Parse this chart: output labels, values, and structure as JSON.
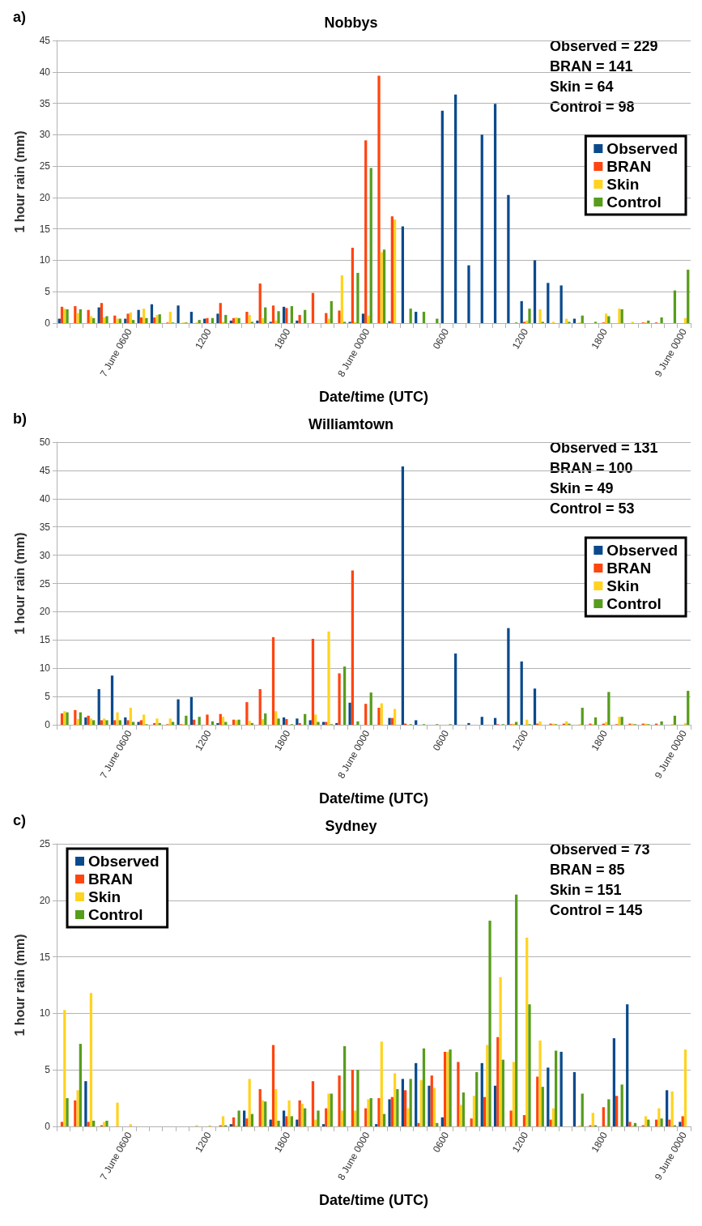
{
  "chart_data": [
    {
      "type": "bar",
      "title": "Nobbys",
      "xlabel": "Date/time (UTC)",
      "ylabel": "1 hour rain (mm)",
      "annotations": [
        "a)",
        "Observed = 229",
        "BRAN = 141",
        "Skin = 64",
        "Control = 98"
      ],
      "grid": "y",
      "legend": "right",
      "ylim": [
        0,
        45
      ],
      "yticks": [
        0,
        5,
        10,
        15,
        20,
        25,
        30,
        35,
        40,
        45
      ],
      "categories": [
        null,
        null,
        null,
        null,
        null,
        "7 June 0600",
        null,
        null,
        null,
        null,
        null,
        "1200",
        null,
        null,
        null,
        null,
        null,
        "1800",
        null,
        null,
        null,
        null,
        null,
        "8 June 0000",
        null,
        null,
        null,
        null,
        null,
        "0600",
        null,
        null,
        null,
        null,
        null,
        "1200",
        null,
        null,
        null,
        null,
        null,
        "1800",
        null,
        null,
        null,
        null,
        null,
        "9 June 0000"
      ],
      "series": [
        {
          "name": "Observed",
          "color": "#0a4a8c",
          "values": [
            0.7,
            0,
            0,
            2.5,
            0,
            0.7,
            2.1,
            3.0,
            0,
            2.8,
            1.8,
            0.7,
            1.5,
            0.4,
            0,
            0.4,
            0.2,
            2.6,
            0.4,
            0,
            0,
            0,
            0.2,
            1.5,
            0,
            0.3,
            15.4,
            1.8,
            0,
            33.8,
            36.4,
            9.2,
            30.0,
            34.9,
            20.4,
            3.5,
            10.0,
            6.4,
            6.0,
            0.7,
            0,
            0,
            0,
            0,
            0,
            0,
            0,
            0
          ]
        },
        {
          "name": "BRAN",
          "color": "#ff4510",
          "values": [
            2.6,
            2.7,
            2.1,
            3.2,
            1.2,
            1.5,
            0.9,
            0.9,
            0.1,
            0,
            0,
            0.8,
            3.2,
            0.8,
            1.8,
            6.3,
            2.8,
            2.4,
            1.3,
            4.8,
            1.6,
            2.0,
            12.0,
            29.1,
            39.4,
            17.0,
            0,
            0,
            0,
            0,
            0,
            0,
            0,
            0,
            0,
            0.2,
            0,
            0,
            0,
            0,
            0,
            0.1,
            0,
            0,
            0.1,
            0.1,
            0,
            0
          ]
        },
        {
          "name": "Skin",
          "color": "#ffd320",
          "values": [
            2.3,
            1.6,
            1.1,
            0.9,
            0.7,
            1.7,
            2.3,
            1.3,
            1.8,
            0.1,
            0.1,
            0,
            0.2,
            0.9,
            1.3,
            0.8,
            0.4,
            0,
            0,
            0,
            0.7,
            7.6,
            0.2,
            1.2,
            11.3,
            16.5,
            0,
            0,
            0,
            0,
            0,
            0,
            0,
            0,
            0,
            0.4,
            2.2,
            0.2,
            0.7,
            0.1,
            0,
            1.5,
            2.3,
            0.2,
            0.1,
            0,
            0,
            0.8
          ]
        },
        {
          "name": "Control",
          "color": "#579d1c",
          "values": [
            2.2,
            2.2,
            0.8,
            1.1,
            0.7,
            0.5,
            0.8,
            1.4,
            0.1,
            0.1,
            0.5,
            0.8,
            1.3,
            0.8,
            0.2,
            2.5,
            1.9,
            2.7,
            2.1,
            0,
            3.5,
            0.2,
            8.0,
            24.7,
            11.7,
            0,
            2.3,
            1.8,
            0.7,
            0,
            0,
            0,
            0,
            0,
            0.1,
            2.3,
            0.2,
            0,
            0.2,
            1.2,
            0.2,
            1.1,
            2.2,
            0,
            0.4,
            0.9,
            5.2,
            8.5
          ]
        }
      ]
    },
    {
      "type": "bar",
      "title": "Williamtown",
      "xlabel": "Date/time (UTC)",
      "ylabel": "1 hour rain (mm)",
      "annotations": [
        "b)",
        "Observed = 131",
        "BRAN = 100",
        "Skin = 49",
        "Control = 53"
      ],
      "grid": "y",
      "legend": "right",
      "ylim": [
        0,
        50
      ],
      "yticks": [
        0,
        5,
        10,
        15,
        20,
        25,
        30,
        35,
        40,
        45,
        50
      ],
      "categories": [
        null,
        null,
        null,
        null,
        null,
        "7 June 0600",
        null,
        null,
        null,
        null,
        null,
        "1200",
        null,
        null,
        null,
        null,
        null,
        "1800",
        null,
        null,
        null,
        null,
        null,
        "8 June 0000",
        null,
        null,
        null,
        null,
        null,
        "0600",
        null,
        null,
        null,
        null,
        null,
        "1200",
        null,
        null,
        null,
        null,
        null,
        "1800",
        null,
        null,
        null,
        null,
        null,
        "9 June 0000"
      ],
      "series": [
        {
          "name": "Observed",
          "color": "#0a4a8c",
          "values": [
            0,
            0,
            1.3,
            6.3,
            8.7,
            1.3,
            0.5,
            0,
            0,
            4.5,
            4.9,
            0,
            0.3,
            0,
            0,
            0,
            0,
            1.3,
            1.1,
            0.8,
            0.5,
            0.3,
            3.9,
            0,
            0,
            1.2,
            45.7,
            0.8,
            0,
            0,
            12.6,
            0.3,
            1.4,
            1.2,
            17.1,
            11.2,
            6.4,
            0,
            0,
            0,
            0,
            0,
            0,
            0,
            0,
            0,
            0,
            0
          ]
        },
        {
          "name": "BRAN",
          "color": "#ff4510",
          "values": [
            2.0,
            2.6,
            1.6,
            0.8,
            0.8,
            0.8,
            0.8,
            0.3,
            0.1,
            0.1,
            0.9,
            1.8,
            1.9,
            0.9,
            4.0,
            6.3,
            15.5,
            1.0,
            0.3,
            15.2,
            0.5,
            9.1,
            27.3,
            3.7,
            3.0,
            1.2,
            0.2,
            0,
            0,
            0,
            0,
            0,
            0,
            0.1,
            0.1,
            0,
            0.2,
            0.2,
            0.2,
            0,
            0.2,
            0.2,
            0.1,
            0.2,
            0.2,
            0.2,
            0,
            0
          ]
        },
        {
          "name": "Skin",
          "color": "#ffd320",
          "values": [
            2.4,
            1.0,
            1.1,
            1.1,
            2.2,
            3.0,
            1.8,
            1.1,
            1.1,
            0.1,
            0,
            0,
            1.4,
            0.8,
            0.7,
            1.0,
            2.4,
            0,
            0,
            1.8,
            16.5,
            0,
            0,
            0,
            3.8,
            2.8,
            0,
            0,
            0,
            0,
            0,
            0,
            0,
            0,
            0.2,
            0.9,
            0.6,
            0.2,
            0.6,
            0.1,
            0.1,
            0.5,
            1.4,
            0.2,
            0.2,
            0,
            0.1,
            0.3
          ]
        },
        {
          "name": "Control",
          "color": "#579d1c",
          "values": [
            2.2,
            2.2,
            0.8,
            0.8,
            0.8,
            0.5,
            0.1,
            0.3,
            0.5,
            1.6,
            1.4,
            0.6,
            0.5,
            0.9,
            0.3,
            2.0,
            1.1,
            0.1,
            1.9,
            0.5,
            0.1,
            10.3,
            0.6,
            5.7,
            0,
            0,
            0.1,
            0.1,
            0.1,
            0.1,
            0,
            0,
            0,
            0.1,
            0.5,
            0.1,
            0,
            0.1,
            0.2,
            3.0,
            1.3,
            5.8,
            1.4,
            0.1,
            0.1,
            0.6,
            1.6,
            6.0
          ]
        }
      ]
    },
    {
      "type": "bar",
      "title": "Sydney",
      "xlabel": "Date/time (UTC)",
      "ylabel": "1 hour rain (mm)",
      "annotations": [
        "c)",
        "Observed = 73",
        "BRAN = 85",
        "Skin = 151",
        "Control = 145"
      ],
      "grid": "y",
      "legend": "top left",
      "ylim": [
        0,
        25
      ],
      "yticks": [
        0,
        5,
        10,
        15,
        20,
        25
      ],
      "categories": [
        null,
        null,
        null,
        null,
        null,
        "7 June 0600",
        null,
        null,
        null,
        null,
        null,
        "1200",
        null,
        null,
        null,
        null,
        null,
        "1800",
        null,
        null,
        null,
        null,
        null,
        "8 June 0000",
        null,
        null,
        null,
        null,
        null,
        "0600",
        null,
        null,
        null,
        null,
        null,
        "1200",
        null,
        null,
        null,
        null,
        null,
        "1800",
        null,
        null,
        null,
        null,
        null,
        "9 June 0000"
      ],
      "series": [
        {
          "name": "Observed",
          "color": "#0a4a8c",
          "values": [
            0,
            0,
            4.0,
            0,
            0,
            0,
            0,
            0,
            0,
            0,
            0,
            0,
            0,
            0.2,
            1.4,
            0,
            0.6,
            1.4,
            0.6,
            0,
            0.2,
            0,
            0,
            0,
            0.2,
            2.4,
            4.2,
            5.6,
            3.6,
            0.8,
            0,
            0,
            5.6,
            3.6,
            0,
            0,
            0,
            5.2,
            6.6,
            4.8,
            0,
            0,
            7.8,
            10.8,
            0,
            0,
            3.2,
            0.4
          ]
        },
        {
          "name": "BRAN",
          "color": "#ff4510",
          "values": [
            0.4,
            2.3,
            0.4,
            0.1,
            0,
            0,
            0,
            0,
            0,
            0,
            0,
            0,
            0.1,
            0.8,
            0.7,
            3.3,
            7.2,
            0.9,
            2.3,
            4.0,
            1.6,
            4.5,
            5.0,
            1.6,
            2.5,
            2.6,
            3.2,
            0.3,
            4.5,
            6.6,
            5.7,
            0.7,
            2.6,
            7.9,
            1.4,
            1.0,
            4.4,
            0.6,
            0,
            0,
            0.1,
            1.7,
            2.7,
            0.4,
            0.1,
            0.6,
            0.6,
            0.9
          ]
        },
        {
          "name": "Skin",
          "color": "#ffd320",
          "values": [
            10.3,
            3.2,
            11.8,
            0.4,
            2.1,
            0.2,
            0,
            0,
            0,
            0,
            0.1,
            0.1,
            0.9,
            0.1,
            4.2,
            2.3,
            3.3,
            2.3,
            2.0,
            0.6,
            2.9,
            1.4,
            1.4,
            2.4,
            7.5,
            4.7,
            1.6,
            4.1,
            3.4,
            6.6,
            1.9,
            2.7,
            7.2,
            13.2,
            5.7,
            16.7,
            7.6,
            1.6,
            0,
            0.1,
            1.2,
            0.1,
            0,
            0.1,
            0.9,
            1.6,
            3.1,
            6.8
          ]
        },
        {
          "name": "Control",
          "color": "#579d1c",
          "values": [
            2.5,
            7.3,
            0.5,
            0.5,
            0,
            0,
            0,
            0,
            0,
            0,
            0,
            0,
            0.1,
            1.4,
            1.1,
            2.2,
            0.5,
            0.9,
            1.6,
            1.4,
            2.9,
            7.1,
            5.0,
            2.5,
            1.1,
            3.3,
            4.2,
            6.9,
            0.3,
            6.8,
            3.0,
            4.8,
            18.2,
            5.9,
            20.5,
            10.8,
            3.5,
            6.7,
            0,
            2.9,
            0.1,
            2.4,
            3.7,
            0.3,
            0.6,
            0.7,
            0.1,
            0
          ]
        }
      ]
    }
  ]
}
